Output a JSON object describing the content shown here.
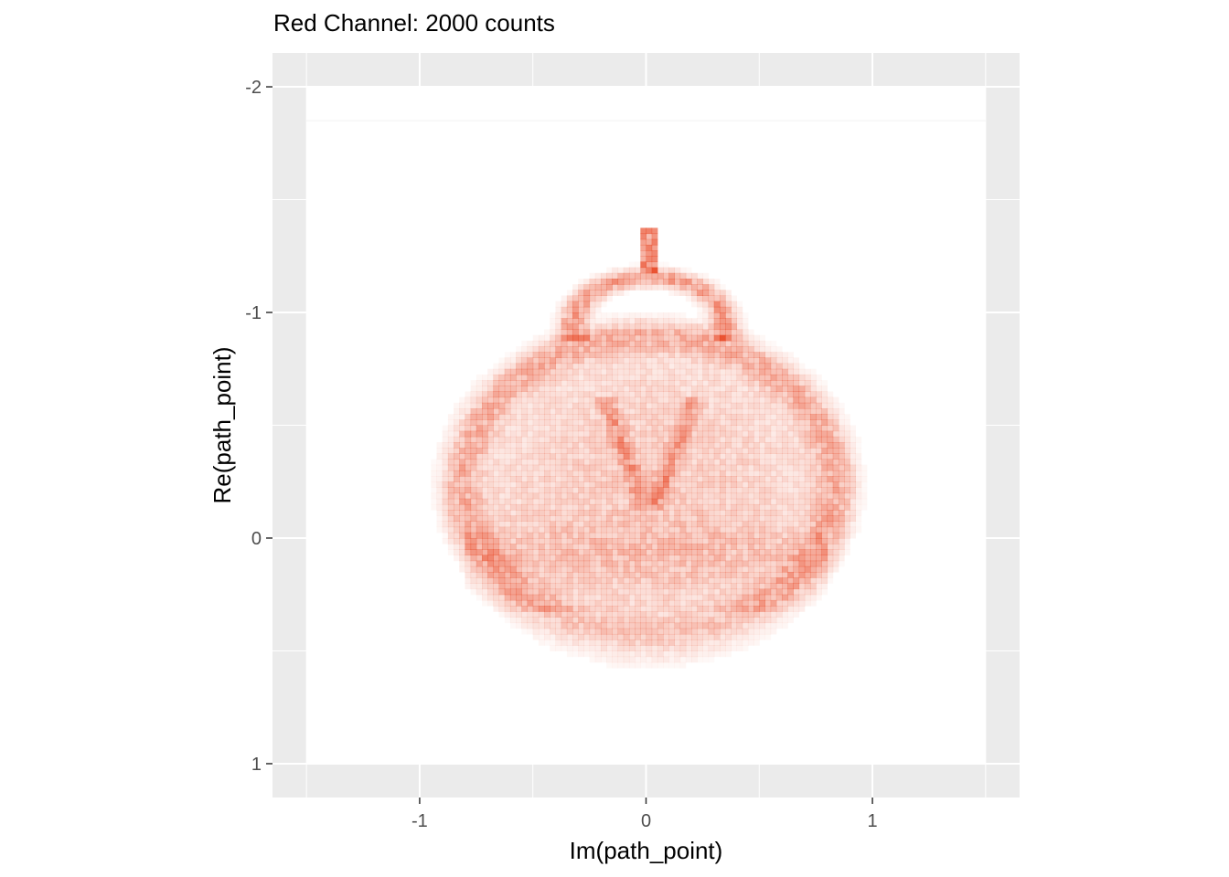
{
  "chart_data": {
    "type": "heatmap",
    "title": "Red Channel: 2000 counts",
    "xlabel": "Im(path_point)",
    "ylabel": "Re(path_point)",
    "xlim": [
      -1.65,
      1.65
    ],
    "ylim": [
      1.15,
      -2.15
    ],
    "y_reversed": true,
    "x_ticks": [
      {
        "value": -1,
        "label": "-1"
      },
      {
        "value": 0,
        "label": "0"
      },
      {
        "value": 1,
        "label": "1"
      }
    ],
    "y_ticks": [
      {
        "value": -2,
        "label": "-2"
      },
      {
        "value": -1,
        "label": "-1"
      },
      {
        "value": 0,
        "label": "0"
      },
      {
        "value": 1,
        "label": "1"
      }
    ],
    "x_minor": [
      -1.5,
      -0.5,
      0.5,
      1.5
    ],
    "y_minor": [
      -1.5,
      -0.5,
      0.5
    ],
    "raster_extent": {
      "x": [
        -1.5,
        1.5
      ],
      "y": [
        -2.0,
        1.0
      ]
    },
    "panel_background": "#ebebeb",
    "raster_background": "#ffffff",
    "fill_color": "#e8401c",
    "grid": true,
    "legend": "none"
  }
}
